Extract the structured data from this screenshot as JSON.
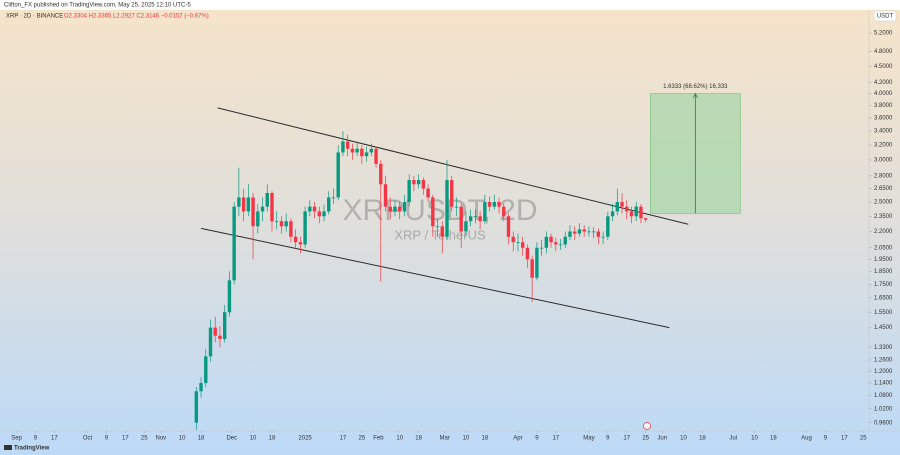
{
  "chart_data": {
    "type": "candlestick",
    "title": "Clifton_FX published on TradingView.com, May 25, 2025 12:10 UTC-5",
    "symbol": "XRP · 2D · BINANCE",
    "ohlc_text": "O2.3304 H2.3365 L2.2927 C2.3146 −0.0157 (−0.67%)",
    "watermark": "XRPUSDT, 2D",
    "watermark_sub": "XRP / TetherUS",
    "currency": "USDT",
    "source": "TradingView",
    "log_scale": true,
    "grid": false,
    "up_color": "#089981",
    "down_color": "#f23645",
    "line_color": "#2a2a2a",
    "measure_color": "#a5d6a7",
    "x": [
      "2024-11-16",
      "2024-11-18",
      "2024-11-20",
      "2024-11-22",
      "2024-11-24",
      "2024-11-26",
      "2024-11-28",
      "2024-11-30",
      "2024-12-02",
      "2024-12-04",
      "2024-12-06",
      "2024-12-08",
      "2024-12-10",
      "2024-12-12",
      "2024-12-14",
      "2024-12-16",
      "2024-12-18",
      "2024-12-20",
      "2024-12-22",
      "2024-12-24",
      "2024-12-26",
      "2024-12-28",
      "2024-12-30",
      "2025-01-01",
      "2025-01-03",
      "2025-01-05",
      "2025-01-07",
      "2025-01-09",
      "2025-01-11",
      "2025-01-13",
      "2025-01-15",
      "2025-01-17",
      "2025-01-19",
      "2025-01-21",
      "2025-01-23",
      "2025-01-25",
      "2025-01-27",
      "2025-01-29",
      "2025-01-31",
      "2025-02-02",
      "2025-02-04",
      "2025-02-06",
      "2025-02-08",
      "2025-02-10",
      "2025-02-12",
      "2025-02-14",
      "2025-02-16",
      "2025-02-18",
      "2025-02-20",
      "2025-02-22",
      "2025-02-24",
      "2025-02-26",
      "2025-02-28",
      "2025-03-02",
      "2025-03-04",
      "2025-03-06",
      "2025-03-08",
      "2025-03-10",
      "2025-03-12",
      "2025-03-14",
      "2025-03-16",
      "2025-03-18",
      "2025-03-20",
      "2025-03-22",
      "2025-03-24",
      "2025-03-26",
      "2025-03-28",
      "2025-03-30",
      "2025-04-01",
      "2025-04-03",
      "2025-04-05",
      "2025-04-07",
      "2025-04-09",
      "2025-04-11",
      "2025-04-13",
      "2025-04-15",
      "2025-04-17",
      "2025-04-19",
      "2025-04-21",
      "2025-04-23",
      "2025-04-25",
      "2025-04-27",
      "2025-04-29",
      "2025-05-01",
      "2025-05-03",
      "2025-05-05",
      "2025-05-07",
      "2025-05-09",
      "2025-05-11",
      "2025-05-13",
      "2025-05-15",
      "2025-05-17",
      "2025-05-19",
      "2025-05-21",
      "2025-05-23",
      "2025-05-25"
    ],
    "open": [
      0.96,
      1.1,
      1.14,
      1.28,
      1.45,
      1.4,
      1.38,
      1.55,
      1.78,
      2.45,
      2.55,
      2.4,
      2.55,
      2.25,
      2.4,
      2.45,
      2.6,
      2.3,
      2.3,
      2.25,
      2.3,
      2.15,
      2.1,
      2.08,
      2.4,
      2.45,
      2.4,
      2.35,
      2.4,
      2.55,
      2.55,
      3.1,
      3.25,
      3.15,
      3.1,
      3.15,
      3.05,
      3.1,
      3.15,
      2.95,
      2.7,
      2.45,
      2.4,
      2.45,
      2.4,
      2.5,
      2.75,
      2.7,
      2.75,
      2.65,
      2.55,
      2.25,
      2.25,
      2.15,
      2.75,
      2.45,
      2.45,
      2.2,
      2.3,
      2.35,
      2.35,
      2.3,
      2.5,
      2.45,
      2.5,
      2.45,
      2.35,
      2.15,
      2.1,
      2.1,
      2.05,
      1.95,
      1.8,
      2.05,
      2.05,
      2.15,
      2.1,
      2.08,
      2.08,
      2.15,
      2.2,
      2.18,
      2.22,
      2.2,
      2.2,
      2.2,
      2.15,
      2.15,
      2.35,
      2.4,
      2.5,
      2.45,
      2.4,
      2.35,
      2.45,
      2.3304
    ],
    "high": [
      1.12,
      1.17,
      1.32,
      1.5,
      1.52,
      1.46,
      1.6,
      1.85,
      2.5,
      2.9,
      2.65,
      2.7,
      2.6,
      2.48,
      2.55,
      2.7,
      2.62,
      2.4,
      2.35,
      2.38,
      2.33,
      2.22,
      2.15,
      2.45,
      2.52,
      2.5,
      2.45,
      2.47,
      2.62,
      2.65,
      3.2,
      3.4,
      3.35,
      3.22,
      3.25,
      3.2,
      3.18,
      3.22,
      3.18,
      3.0,
      2.8,
      2.55,
      2.52,
      2.5,
      2.58,
      2.82,
      2.8,
      2.82,
      2.78,
      2.7,
      2.58,
      2.32,
      2.3,
      3.0,
      2.8,
      2.55,
      2.48,
      2.4,
      2.42,
      2.42,
      2.4,
      2.58,
      2.56,
      2.58,
      2.55,
      2.48,
      2.38,
      2.2,
      2.18,
      2.15,
      2.08,
      1.98,
      2.1,
      2.12,
      2.2,
      2.18,
      2.14,
      2.13,
      2.2,
      2.26,
      2.25,
      2.28,
      2.26,
      2.25,
      2.24,
      2.23,
      2.2,
      2.4,
      2.48,
      2.65,
      2.6,
      2.52,
      2.45,
      2.5,
      2.48,
      2.3365
    ],
    "low": [
      0.93,
      1.07,
      1.12,
      1.25,
      1.36,
      1.33,
      1.36,
      1.52,
      1.75,
      2.35,
      2.3,
      2.35,
      1.95,
      2.18,
      2.3,
      2.4,
      2.2,
      2.22,
      2.18,
      2.2,
      2.1,
      2.05,
      2.0,
      2.05,
      2.35,
      2.33,
      2.28,
      2.3,
      2.37,
      2.48,
      2.52,
      3.05,
      3.05,
      3.0,
      3.05,
      2.95,
      2.98,
      3.05,
      2.9,
      1.77,
      2.4,
      2.32,
      2.35,
      2.32,
      2.35,
      2.45,
      2.62,
      2.65,
      2.58,
      2.5,
      2.15,
      2.15,
      2.0,
      2.12,
      2.4,
      2.35,
      2.05,
      2.15,
      2.25,
      2.28,
      2.22,
      2.28,
      2.4,
      2.42,
      2.38,
      2.3,
      2.08,
      2.02,
      2.02,
      1.98,
      1.88,
      1.62,
      1.78,
      1.98,
      2.0,
      2.05,
      2.02,
      2.03,
      2.05,
      2.12,
      2.12,
      2.15,
      2.15,
      2.15,
      2.14,
      2.08,
      2.08,
      2.12,
      2.3,
      2.36,
      2.38,
      2.32,
      2.28,
      2.3,
      2.28,
      2.2927
    ],
    "close": [
      1.1,
      1.14,
      1.28,
      1.45,
      1.4,
      1.38,
      1.55,
      1.78,
      2.45,
      2.55,
      2.4,
      2.55,
      2.25,
      2.4,
      2.45,
      2.6,
      2.3,
      2.3,
      2.25,
      2.3,
      2.15,
      2.1,
      2.08,
      2.4,
      2.45,
      2.4,
      2.35,
      2.4,
      2.55,
      2.55,
      3.1,
      3.25,
      3.15,
      3.1,
      3.15,
      3.05,
      3.1,
      3.15,
      2.95,
      2.7,
      2.45,
      2.4,
      2.45,
      2.4,
      2.5,
      2.75,
      2.7,
      2.75,
      2.65,
      2.55,
      2.25,
      2.25,
      2.15,
      2.75,
      2.45,
      2.45,
      2.2,
      2.3,
      2.35,
      2.35,
      2.3,
      2.5,
      2.45,
      2.5,
      2.45,
      2.35,
      2.15,
      2.1,
      2.1,
      2.05,
      1.95,
      1.8,
      2.05,
      2.05,
      2.15,
      2.1,
      2.08,
      2.08,
      2.15,
      2.2,
      2.18,
      2.22,
      2.2,
      2.2,
      2.2,
      2.15,
      2.15,
      2.35,
      2.4,
      2.5,
      2.45,
      2.4,
      2.35,
      2.45,
      2.33,
      2.3146
    ],
    "trendlines": [
      {
        "x": [
          "2024-11-25",
          "2025-06-12"
        ],
        "y": [
          3.76,
          2.27
        ]
      },
      {
        "x": [
          "2024-11-18",
          "2025-06-04"
        ],
        "y": [
          2.23,
          1.45
        ]
      }
    ],
    "measure": {
      "label": "1.6333 (68.62%) 16,333",
      "x": [
        "2025-05-27",
        "2025-07-04"
      ],
      "y": [
        2.38,
        4.0
      ]
    },
    "xlim": [
      "2024-08-25",
      "2025-08-27"
    ],
    "ylim": [
      0.93,
      5.7
    ],
    "xticks": [
      {
        "value": "2024-09-01",
        "label": "Sep"
      },
      {
        "value": "2024-09-09",
        "label": "9"
      },
      {
        "value": "2024-09-17",
        "label": "17"
      },
      {
        "value": "2024-10-01",
        "label": "Oct"
      },
      {
        "value": "2024-10-09",
        "label": "9"
      },
      {
        "value": "2024-10-17",
        "label": "17"
      },
      {
        "value": "2024-10-25",
        "label": "25"
      },
      {
        "value": "2024-11-01",
        "label": "Nov"
      },
      {
        "value": "2024-11-10",
        "label": "10"
      },
      {
        "value": "2024-11-18",
        "label": "18"
      },
      {
        "value": "2024-12-01",
        "label": "Dec"
      },
      {
        "value": "2024-12-10",
        "label": "10"
      },
      {
        "value": "2024-12-18",
        "label": "18"
      },
      {
        "value": "2025-01-01",
        "label": "2025"
      },
      {
        "value": "2025-01-17",
        "label": "17"
      },
      {
        "value": "2025-01-25",
        "label": "25"
      },
      {
        "value": "2025-02-01",
        "label": "Feb"
      },
      {
        "value": "2025-02-10",
        "label": "10"
      },
      {
        "value": "2025-02-18",
        "label": "18"
      },
      {
        "value": "2025-03-01",
        "label": "Mar"
      },
      {
        "value": "2025-03-10",
        "label": "10"
      },
      {
        "value": "2025-03-18",
        "label": "18"
      },
      {
        "value": "2025-04-01",
        "label": "Apr"
      },
      {
        "value": "2025-04-09",
        "label": "9"
      },
      {
        "value": "2025-04-17",
        "label": "17"
      },
      {
        "value": "2025-05-01",
        "label": "May"
      },
      {
        "value": "2025-05-09",
        "label": "9"
      },
      {
        "value": "2025-05-17",
        "label": "17"
      },
      {
        "value": "2025-05-25",
        "label": "25"
      },
      {
        "value": "2025-06-01",
        "label": "Jun"
      },
      {
        "value": "2025-06-10",
        "label": "10"
      },
      {
        "value": "2025-06-18",
        "label": "18"
      },
      {
        "value": "2025-07-01",
        "label": "Jul"
      },
      {
        "value": "2025-07-10",
        "label": "10"
      },
      {
        "value": "2025-07-18",
        "label": "18"
      },
      {
        "value": "2025-08-01",
        "label": "Aug"
      },
      {
        "value": "2025-08-09",
        "label": "9"
      },
      {
        "value": "2025-08-17",
        "label": "17"
      },
      {
        "value": "2025-08-25",
        "label": "25"
      }
    ],
    "yticks": [
      {
        "value": 0.96,
        "label": "0.9600"
      },
      {
        "value": 1.02,
        "label": "1.0200"
      },
      {
        "value": 1.08,
        "label": "1.0800"
      },
      {
        "value": 1.14,
        "label": "1.1400"
      },
      {
        "value": 1.2,
        "label": "1.2000"
      },
      {
        "value": 1.26,
        "label": "1.2600"
      },
      {
        "value": 1.33,
        "label": "1.3300"
      },
      {
        "value": 1.45,
        "label": "1.4500"
      },
      {
        "value": 1.55,
        "label": "1.5500"
      },
      {
        "value": 1.65,
        "label": "1.6500"
      },
      {
        "value": 1.75,
        "label": "1.7500"
      },
      {
        "value": 1.85,
        "label": "1.8500"
      },
      {
        "value": 1.95,
        "label": "1.9500"
      },
      {
        "value": 2.05,
        "label": "2.0500"
      },
      {
        "value": 2.2,
        "label": "2.2000"
      },
      {
        "value": 2.35,
        "label": "2.3500"
      },
      {
        "value": 2.5,
        "label": "2.5000"
      },
      {
        "value": 2.65,
        "label": "2.6500"
      },
      {
        "value": 2.8,
        "label": "2.8000"
      },
      {
        "value": 3.0,
        "label": "3.0000"
      },
      {
        "value": 3.2,
        "label": "3.2000"
      },
      {
        "value": 3.4,
        "label": "3.4000"
      },
      {
        "value": 3.6,
        "label": "3.6000"
      },
      {
        "value": 3.8,
        "label": "3.8000"
      },
      {
        "value": 4.0,
        "label": "4.0000"
      },
      {
        "value": 4.2,
        "label": "4.2000"
      },
      {
        "value": 4.5,
        "label": "4.5000"
      },
      {
        "value": 4.8,
        "label": "4.8000"
      },
      {
        "value": 5.2,
        "label": "5.2000"
      }
    ]
  }
}
